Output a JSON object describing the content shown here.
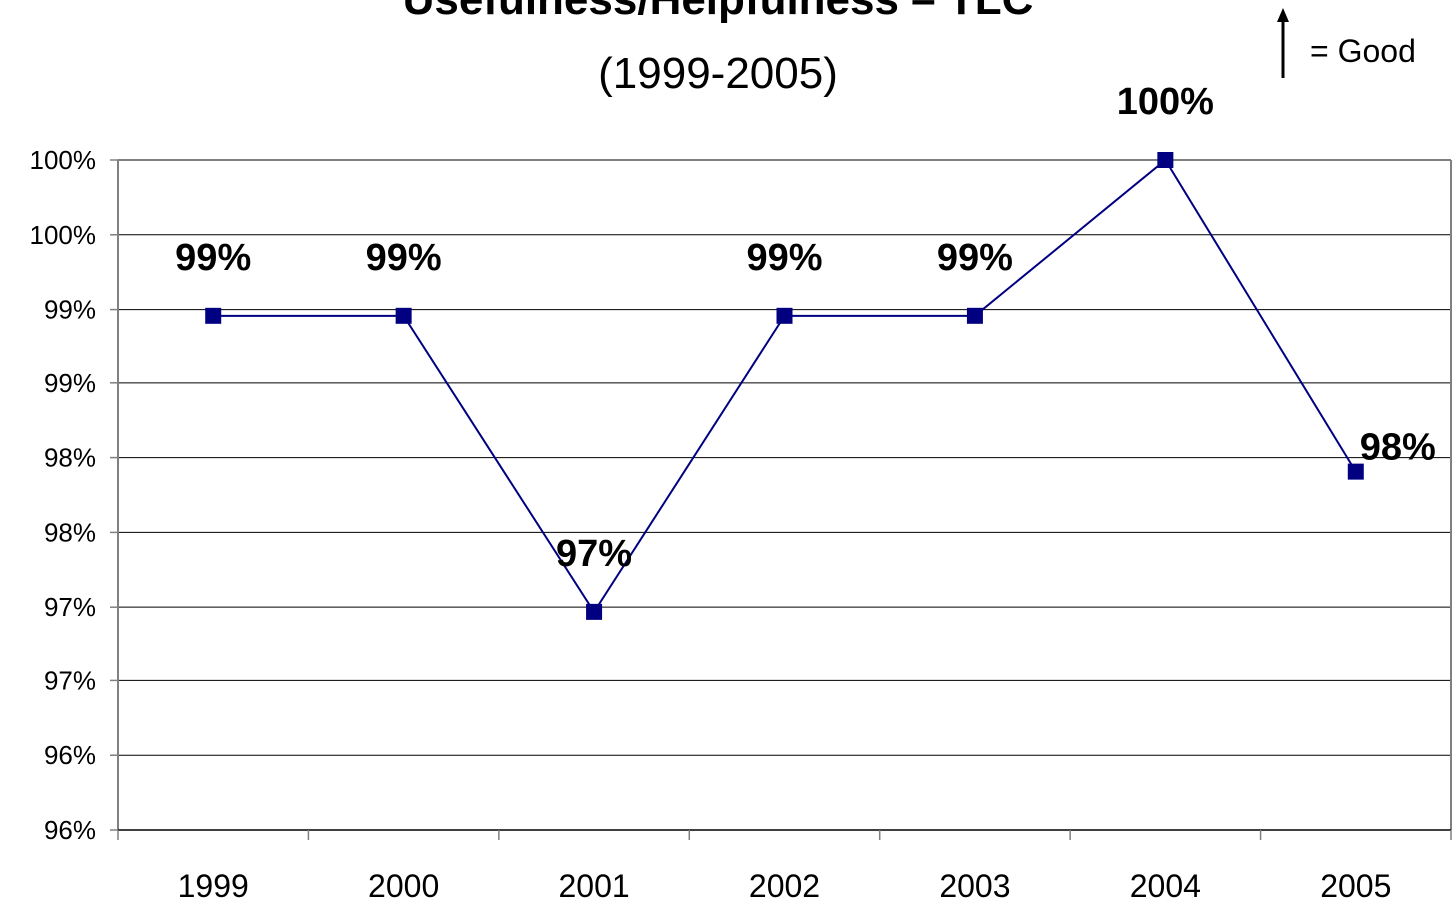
{
  "chart_data": {
    "type": "line",
    "title": "Usefulness/Helpfulness – TLC",
    "subtitle": "(1999-2005)",
    "legend_note": "= Good",
    "legend_icon": "up-arrow-icon",
    "x": [
      "1999",
      "2000",
      "2001",
      "2002",
      "2003",
      "2004",
      "2005"
    ],
    "series": [
      {
        "values": [
          99.2,
          99.2,
          97.3,
          99.2,
          99.2,
          100.2,
          98.2
        ],
        "data_labels": [
          "99%",
          "99%",
          "97%",
          "99%",
          "99%",
          "100%",
          "98%"
        ],
        "color": "#000080",
        "marker": "square"
      }
    ],
    "ylim": [
      95.9,
      100.2
    ],
    "y_ticks": [
      95.9,
      96.38,
      96.86,
      97.33,
      97.81,
      98.29,
      98.77,
      99.24,
      99.72,
      100.2
    ],
    "y_tick_labels": [
      "96%",
      "96%",
      "97%",
      "97%",
      "98%",
      "98%",
      "99%",
      "99%",
      "100%",
      "100%"
    ],
    "grid": true,
    "colors": {
      "line": "#000080",
      "marker": "#000080",
      "grid": "#000000",
      "axis": "#808080"
    }
  }
}
